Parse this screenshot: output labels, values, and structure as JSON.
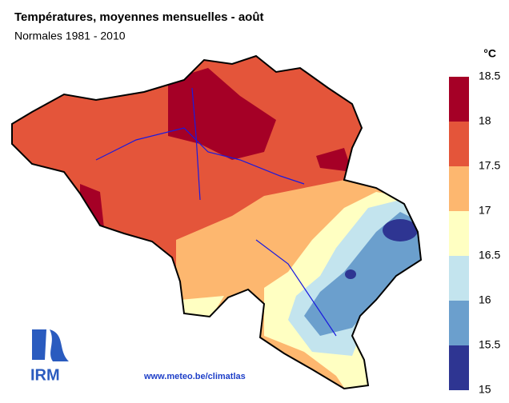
{
  "title": "Températures, moyennes mensuelles - août",
  "subtitle": "Normales 1981 - 2010",
  "legend": {
    "unit": "°C",
    "ticks": [
      18.5,
      18,
      17.5,
      17,
      16.5,
      16,
      15.5,
      15
    ],
    "colors": [
      "#a50026",
      "#e4553a",
      "#fdb76f",
      "#ffffc2",
      "#c3e4ee",
      "#6b9fcd",
      "#2e3592"
    ]
  },
  "footer": "www.meteo.be/climatlas",
  "logo": "IRM"
}
